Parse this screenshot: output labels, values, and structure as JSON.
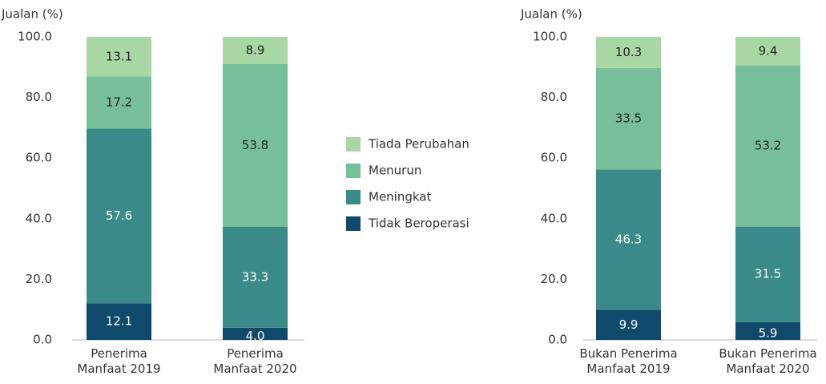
{
  "chart_data": [
    {
      "type": "stacked_bar",
      "y_label": "Jualan (%)",
      "categories": [
        "Penerima Manfaat 2019",
        "Penerima Manfaat 2020"
      ],
      "ylim": [
        0,
        100
      ],
      "yticks": [
        {
          "value": 0,
          "label": "0.0"
        },
        {
          "value": 20,
          "label": "20.0"
        },
        {
          "value": 40,
          "label": "40.0"
        },
        {
          "value": 60,
          "label": "60.0"
        },
        {
          "value": 80,
          "label": "80.0"
        },
        {
          "value": 100,
          "label": "100.0"
        }
      ],
      "series": [
        {
          "name": "Tidak Beroperasi",
          "color": "#0f4a6c",
          "label_color": "#ffffff",
          "values": [
            12.1,
            4.0
          ],
          "value_labels": [
            "12.1",
            "4.0"
          ]
        },
        {
          "name": "Meningkat",
          "color": "#3a8a89",
          "label_color": "#ffffff",
          "values": [
            57.6,
            33.3
          ],
          "value_labels": [
            "57.6",
            "33.3"
          ]
        },
        {
          "name": "Menurun",
          "color": "#76bf9a",
          "label_color": "#222222",
          "values": [
            17.2,
            53.8
          ],
          "value_labels": [
            "17.2",
            "53.8"
          ]
        },
        {
          "name": "Tiada Perubahan",
          "color": "#a8d7a3",
          "label_color": "#222222",
          "values": [
            13.1,
            8.9
          ],
          "value_labels": [
            "13.1",
            "8.9"
          ]
        }
      ]
    },
    {
      "type": "stacked_bar",
      "y_label": "Jualan (%)",
      "categories": [
        "Bukan Penerima Manfaat 2019",
        "Bukan Penerima Manfaat 2020"
      ],
      "ylim": [
        0,
        100
      ],
      "yticks": [
        {
          "value": 0,
          "label": "0.0"
        },
        {
          "value": 20,
          "label": "20.0"
        },
        {
          "value": 40,
          "label": "40.0"
        },
        {
          "value": 60,
          "label": "60.0"
        },
        {
          "value": 80,
          "label": "80.0"
        },
        {
          "value": 100,
          "label": "100.0"
        }
      ],
      "series": [
        {
          "color": "#0f4a6c",
          "label_color": "#ffffff",
          "values": [
            9.9,
            5.9
          ],
          "value_labels": [
            "9.9",
            "5.9"
          ]
        },
        {
          "color": "#3a8a89",
          "label_color": "#ffffff",
          "values": [
            46.3,
            31.5
          ],
          "value_labels": [
            "46.3",
            "31.5"
          ]
        },
        {
          "color": "#76bf9a",
          "label_color": "#222222",
          "values": [
            33.5,
            53.2
          ],
          "value_labels": [
            "33.5",
            "53.2"
          ]
        },
        {
          "color": "#a8d7a3",
          "label_color": "#222222",
          "values": [
            10.3,
            9.4
          ],
          "value_labels": [
            "10.3",
            "9.4"
          ]
        }
      ]
    }
  ]
}
